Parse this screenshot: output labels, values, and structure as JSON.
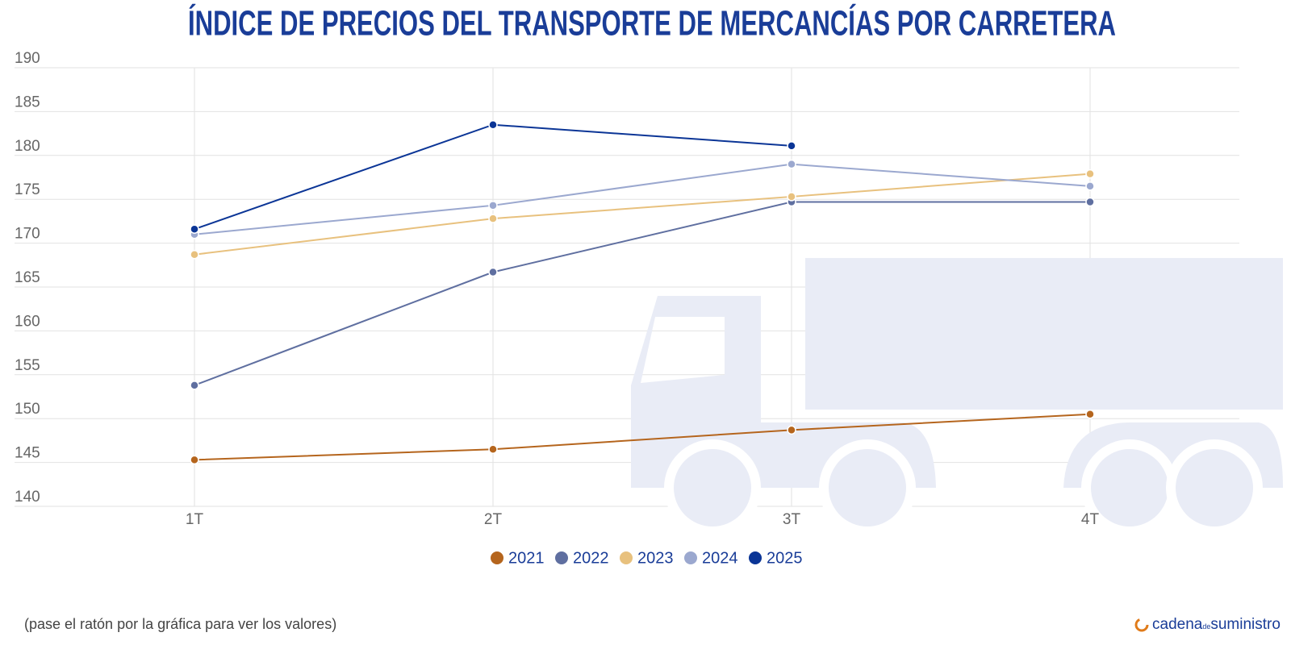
{
  "chart_data": {
    "type": "line",
    "title": "ÍNDICE DE PRECIOS DEL TRANSPORTE DE MERCANCÍAS POR CARRETERA",
    "categories": [
      "1T",
      "2T",
      "3T",
      "4T"
    ],
    "series": [
      {
        "name": "2021",
        "color": "#b5651d",
        "values": [
          145.3,
          146.5,
          148.7,
          150.5
        ]
      },
      {
        "name": "2022",
        "color": "#5f6fa0",
        "values": [
          153.8,
          166.7,
          174.7,
          174.7
        ]
      },
      {
        "name": "2023",
        "color": "#e8c17e",
        "values": [
          168.7,
          172.8,
          175.3,
          177.9
        ]
      },
      {
        "name": "2024",
        "color": "#9ba8cf",
        "values": [
          171.0,
          174.3,
          179.0,
          176.5
        ]
      },
      {
        "name": "2025",
        "color": "#0b3596",
        "values": [
          171.6,
          183.5,
          181.1,
          null
        ]
      }
    ],
    "ylim": [
      140,
      190
    ],
    "yticks": [
      140,
      145,
      150,
      155,
      160,
      165,
      170,
      175,
      180,
      185,
      190
    ],
    "grid": true,
    "legend": "bottom",
    "footnote": "(pase el ratón por la gráfica para ver los valores)",
    "logo": {
      "part1": "cadena",
      "part2": "de",
      "part3": "suministro"
    }
  }
}
